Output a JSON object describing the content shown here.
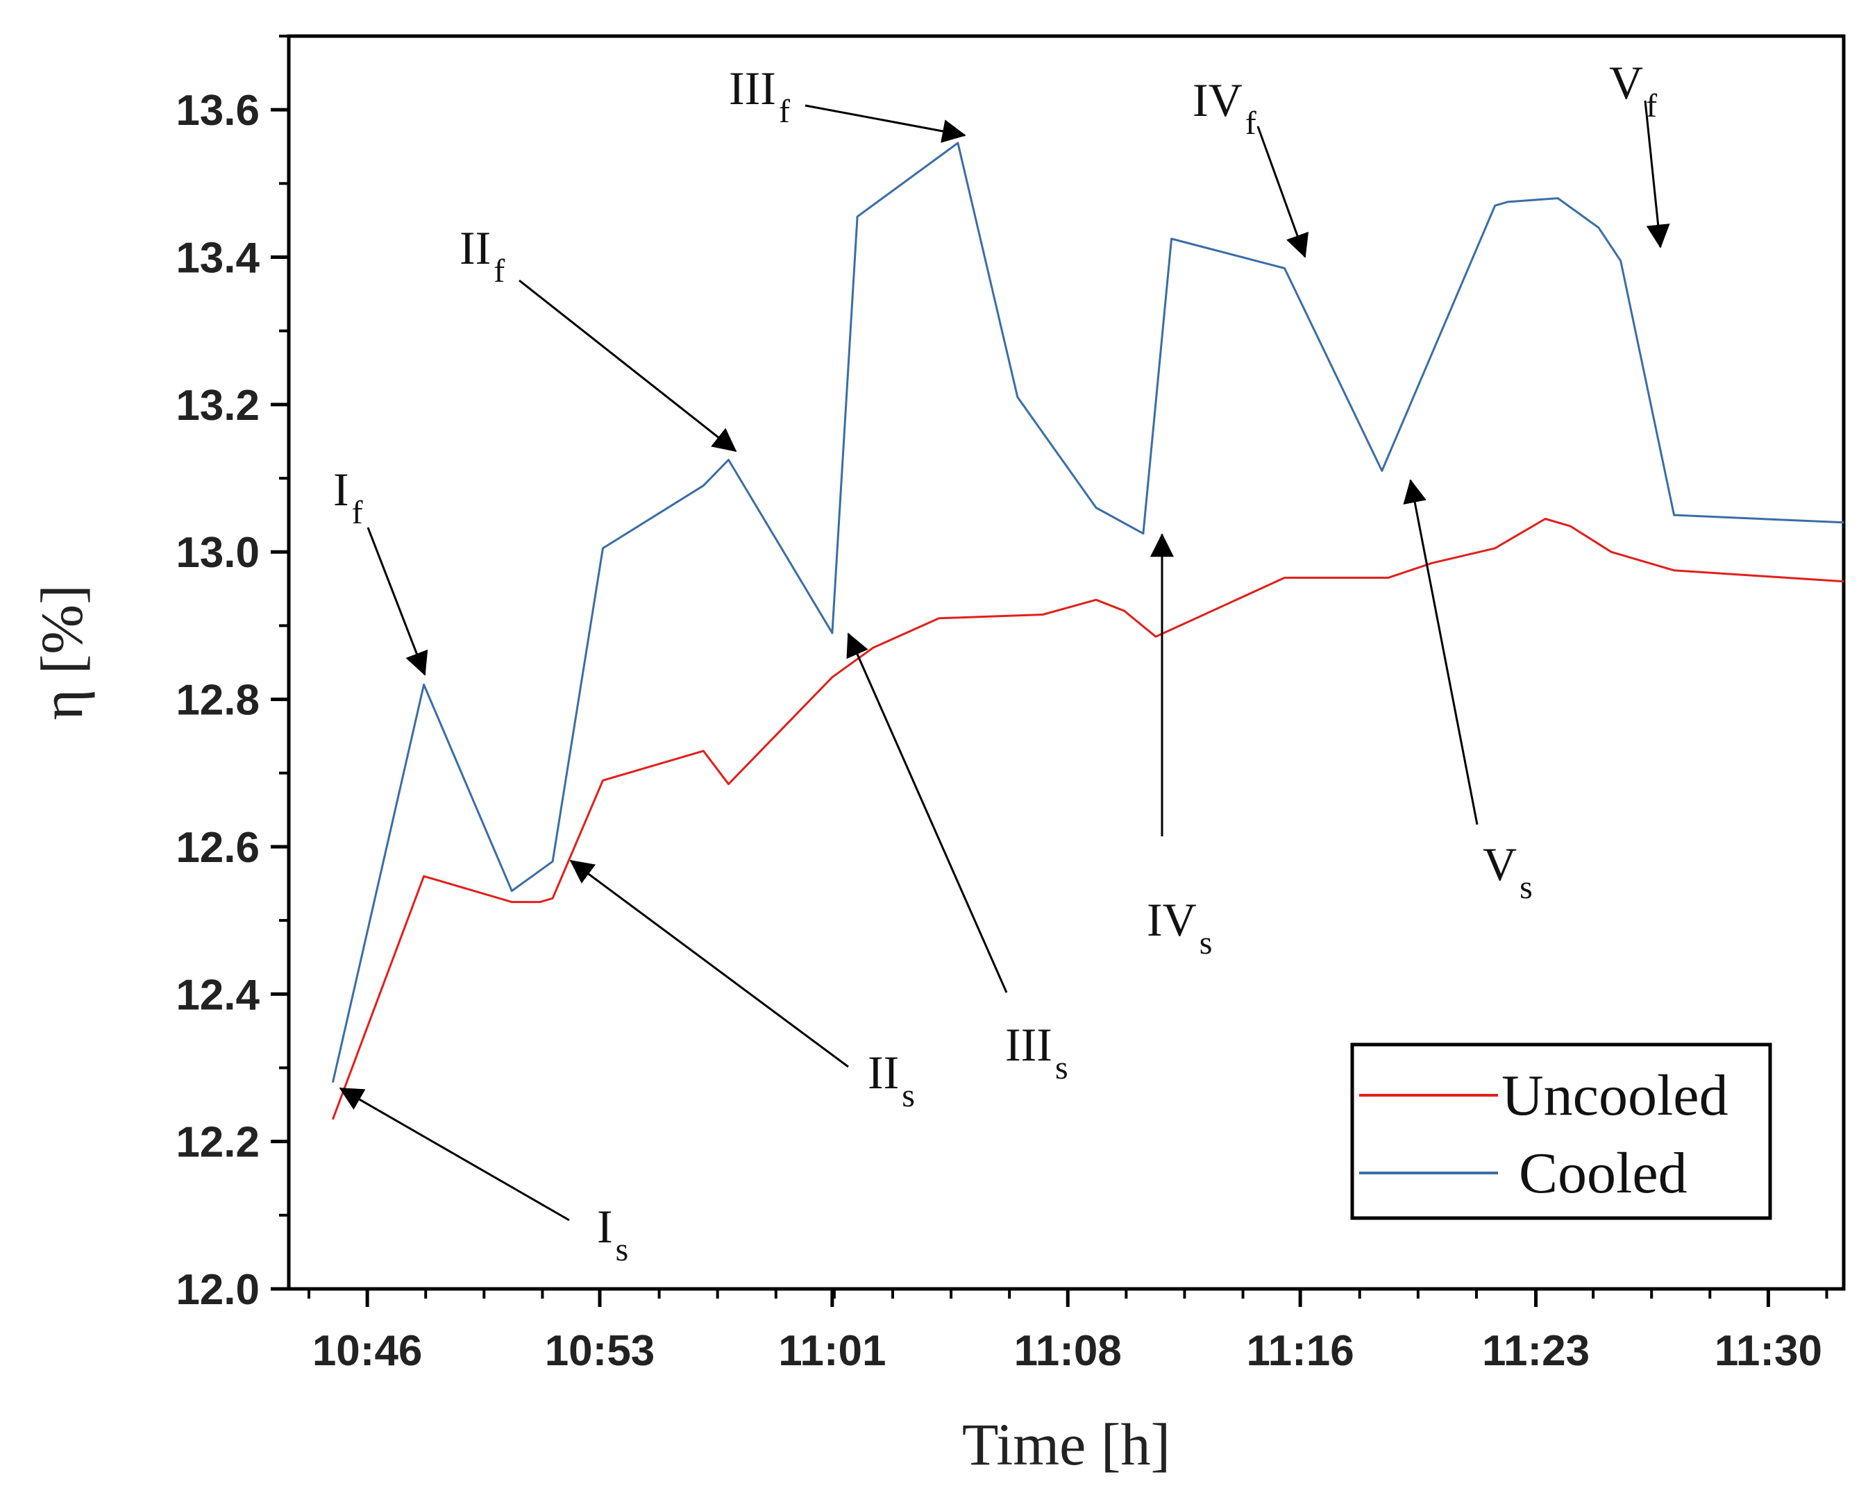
{
  "chart_data": {
    "type": "line",
    "title": "",
    "xlabel": "Time [h]",
    "ylabel": "η [%]",
    "ylim": [
      12.0,
      13.7
    ],
    "xlim_minutes": [
      42.0,
      91.5
    ],
    "yticks": [
      12.0,
      12.2,
      12.4,
      12.6,
      12.8,
      13.0,
      13.2,
      13.4,
      13.6
    ],
    "ytick_labels": [
      "12.0",
      "12.2",
      "12.4",
      "12.6",
      "12.8",
      "13.0",
      "13.2",
      "13.4",
      "13.6"
    ],
    "xticks": [
      44.5,
      51.9,
      59.3,
      66.8,
      74.2,
      81.7,
      89.1
    ],
    "xtick_labels": [
      "10:46",
      "10:53",
      "11:01",
      "11:08",
      "11:16",
      "11:23",
      "11:30"
    ],
    "series": [
      {
        "name": "Uncooled",
        "color": "#e0201b",
        "x": [
          43.4,
          46.3,
          49.1,
          50.0,
          50.4,
          52.0,
          55.2,
          56.0,
          59.3,
          60.6,
          62.7,
          66.0,
          67.7,
          68.6,
          69.6,
          73.7,
          77.0,
          78.4,
          80.4,
          82.0,
          82.8,
          84.1,
          86.1,
          91.5
        ],
        "y": [
          12.23,
          12.56,
          12.525,
          12.525,
          12.53,
          12.69,
          12.73,
          12.685,
          12.83,
          12.87,
          12.91,
          12.915,
          12.935,
          12.92,
          12.885,
          12.965,
          12.965,
          12.985,
          13.005,
          13.045,
          13.035,
          13.0,
          12.975,
          12.96
        ]
      },
      {
        "name": "Cooled",
        "color": "#3a6ea5",
        "x": [
          43.4,
          46.3,
          49.1,
          50.4,
          52.0,
          55.2,
          56.0,
          59.3,
          60.1,
          63.3,
          65.2,
          67.7,
          69.2,
          70.1,
          73.7,
          76.8,
          80.4,
          80.8,
          82.4,
          83.7,
          84.4,
          86.1,
          91.5
        ],
        "y": [
          12.28,
          12.82,
          12.54,
          12.58,
          13.005,
          13.09,
          13.125,
          12.89,
          13.455,
          13.555,
          13.21,
          13.06,
          13.025,
          13.425,
          13.385,
          13.11,
          13.47,
          13.475,
          13.48,
          13.44,
          13.395,
          13.05,
          13.04
        ]
      }
    ],
    "annotations": [
      {
        "main": "I",
        "sub": "s"
      },
      {
        "main": "I",
        "sub": "f"
      },
      {
        "main": "II",
        "sub": "s"
      },
      {
        "main": "II",
        "sub": "f"
      },
      {
        "main": "III",
        "sub": "s"
      },
      {
        "main": "III",
        "sub": "f"
      },
      {
        "main": "IV",
        "sub": "s"
      },
      {
        "main": "IV",
        "sub": "f"
      },
      {
        "main": "V",
        "sub": "s"
      },
      {
        "main": "V",
        "sub": "f"
      }
    ],
    "legend": {
      "position": "bottom-right",
      "entries": [
        "Uncooled",
        "Cooled"
      ]
    }
  }
}
